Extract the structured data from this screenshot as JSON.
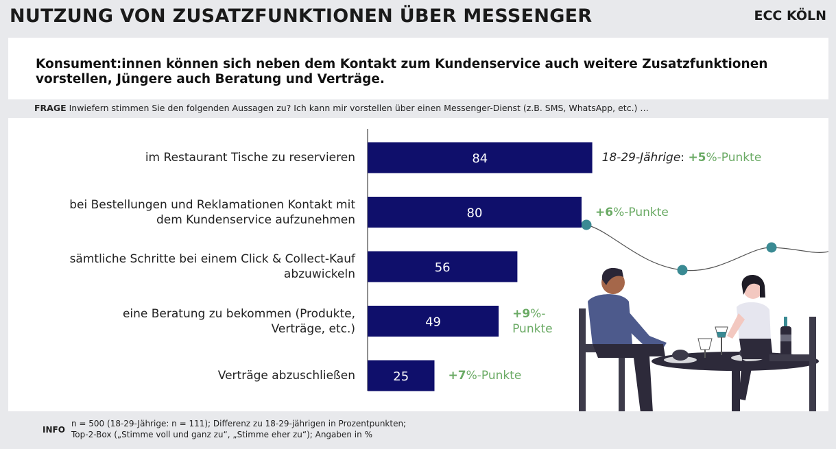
{
  "header": {
    "title": "NUTZUNG VON ZUSATZFUNKTIONEN ÜBER MESSENGER",
    "brand": "ECC KÖLN"
  },
  "subtitle": {
    "line1": "Konsument:innen können sich neben dem Kontakt zum Kundenservice auch weitere Zusatzfunktionen",
    "line2": "vorstellen, Jüngere auch Beratung und Verträge."
  },
  "question": {
    "tag": "FRAGE",
    "text": " Inwiefern stimmen Sie den folgenden Aussagen zu? Ich kann mir vorstellen über einen Messenger-Dienst (z.B. SMS, WhatsApp, etc.) …"
  },
  "chart_data": {
    "type": "bar",
    "orientation": "horizontal",
    "categories": [
      "im Restaurant Tische zu reservieren",
      "bei Bestellungen und Reklamationen Kontakt mit dem Kundenservice aufzunehmen",
      "sämtliche Schritte bei einem Click & Collect-Kauf abzuwickeln",
      "eine Beratung zu bekommen (Produkte, Verträge, etc.)",
      "Verträge abzuschließen"
    ],
    "category_lines": [
      [
        "im Restaurant Tische zu reservieren"
      ],
      [
        "bei Bestellungen und Reklamationen Kontakt mit",
        "dem Kundenservice aufzunehmen"
      ],
      [
        "sämtliche Schritte bei einem Click & Collect-Kauf",
        "abzuwickeln"
      ],
      [
        "eine Beratung zu bekommen (Produkte,",
        "Verträge, etc.)"
      ],
      [
        "Verträge abzuschließen"
      ]
    ],
    "values": [
      84,
      80,
      56,
      49,
      25
    ],
    "xlim": [
      0,
      100
    ],
    "bar_color": "#0f0f6b",
    "value_label_color": "#ffffff",
    "grid": false,
    "annotations": [
      {
        "prefix": "18-29-Jährige",
        "sep": ": ",
        "bold": "+5",
        "rest": "%-Punkte"
      },
      {
        "prefix": "",
        "sep": "",
        "bold": "+6",
        "rest": "%-Punkte"
      },
      null,
      {
        "prefix": "",
        "sep": "",
        "bold": "+9",
        "rest": "%-",
        "rest2": "Punkte"
      },
      {
        "prefix": "",
        "sep": "",
        "bold": "+7",
        "rest": "%-Punkte"
      }
    ],
    "annotation_color": "#6aaa64"
  },
  "info": {
    "tag": "INFO",
    "line1": "n = 500 (18-29-Jährige: n = 111); Differenz zu 18-29-jährigen in Prozentpunkten;",
    "line2": "Top-2-Box („Stimme voll und ganz zu“, „Stimme eher zu“); Angaben in %"
  },
  "illustration": {
    "icon": "restaurant-couple-illustration",
    "accent": "#3a8a93"
  }
}
